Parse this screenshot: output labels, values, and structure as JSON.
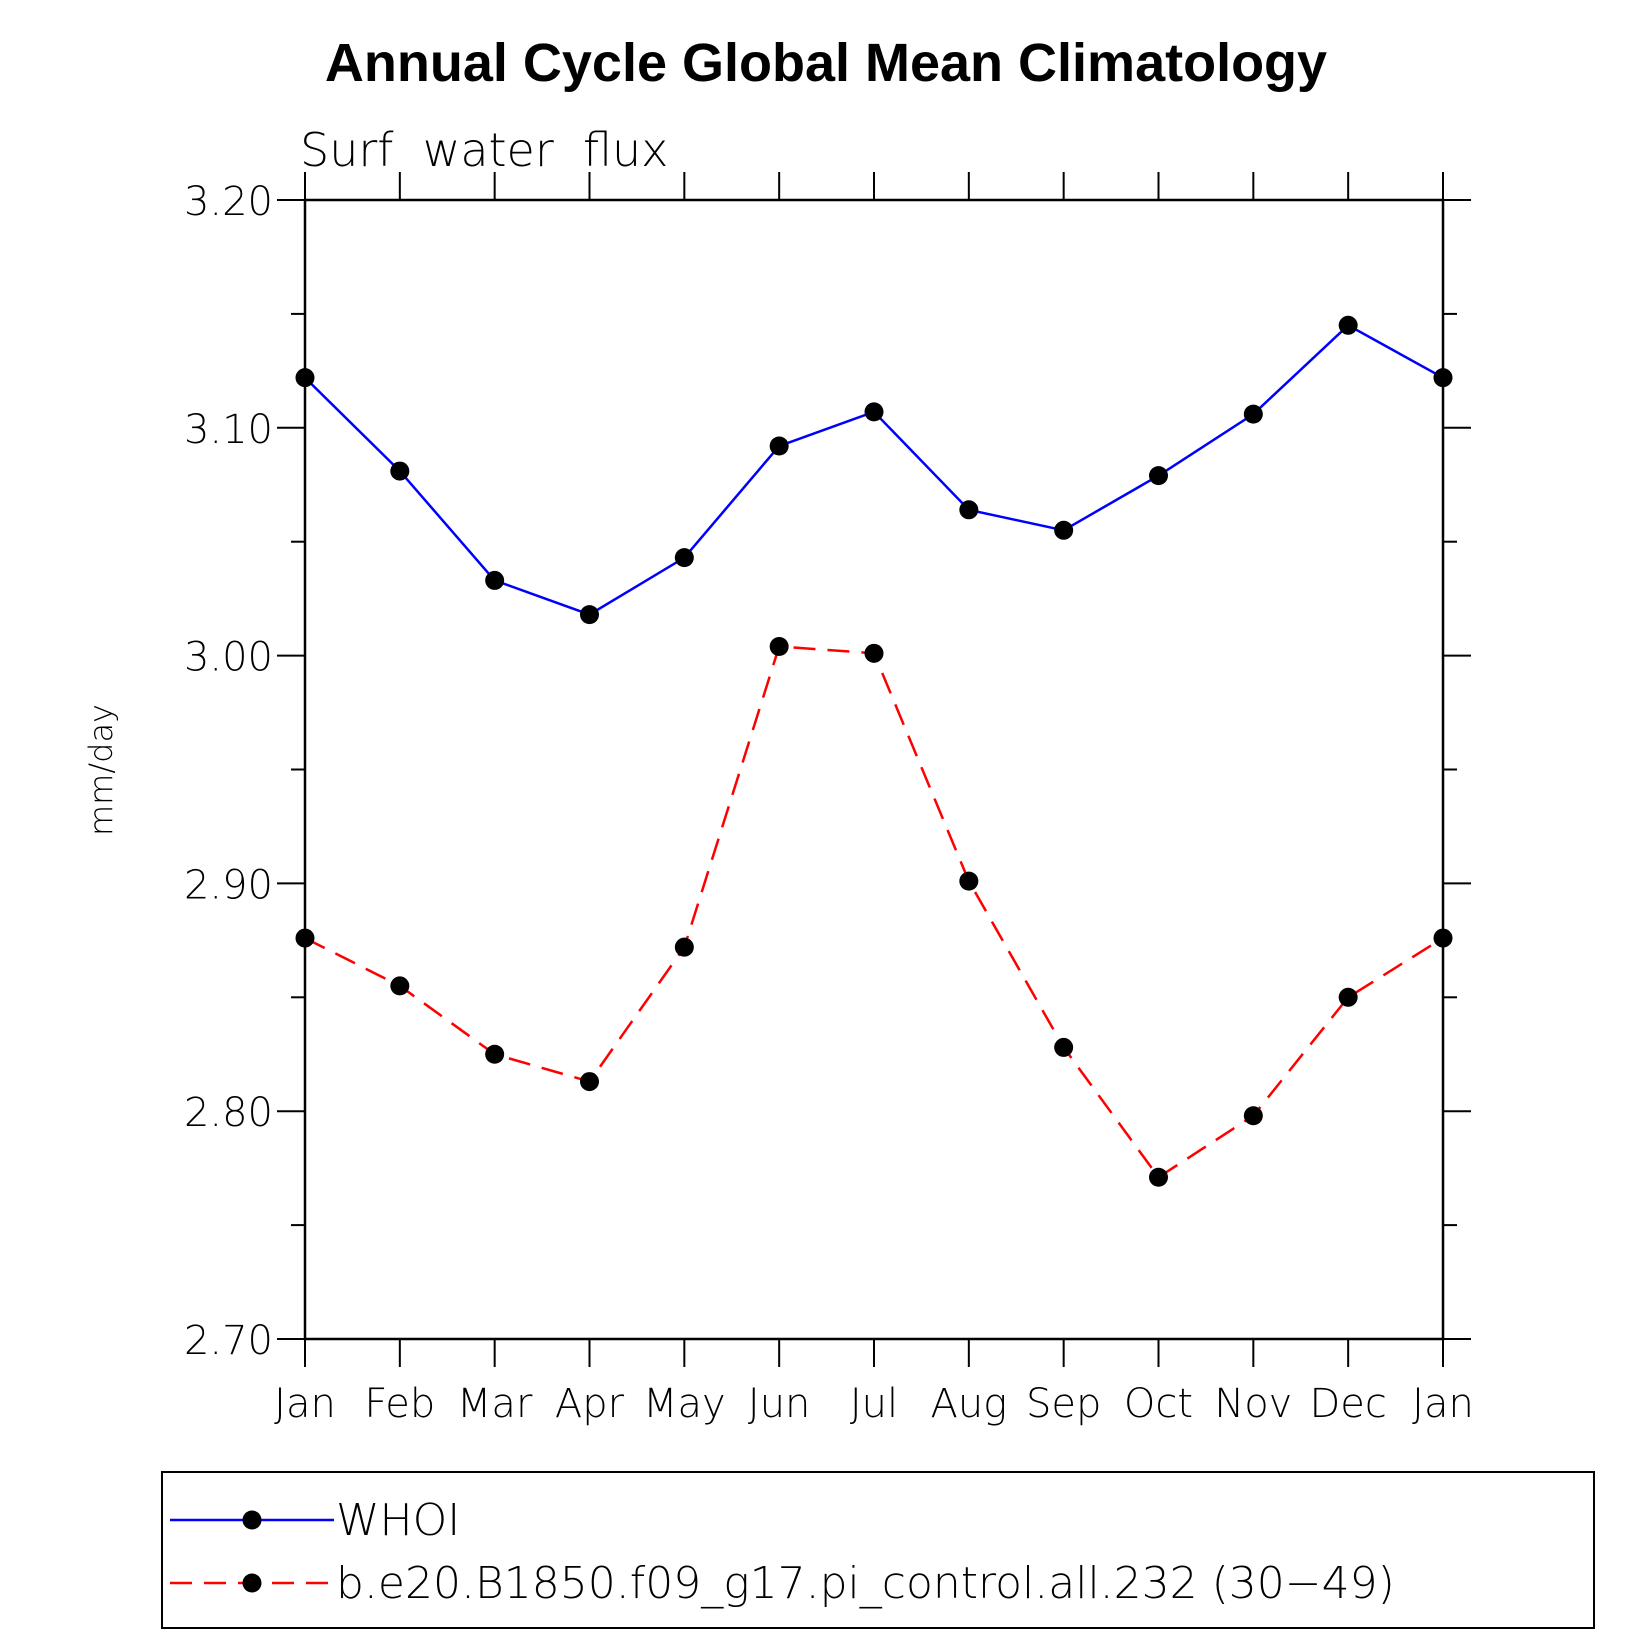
{
  "chart_data": {
    "type": "line",
    "title": "Annual Cycle Global Mean Climatology",
    "subtitle": "Surf  water  flux",
    "ylabel": "mm/day",
    "xlabel": "",
    "categories": [
      "Jan",
      "Feb",
      "Mar",
      "Apr",
      "May",
      "Jun",
      "Jul",
      "Aug",
      "Sep",
      "Oct",
      "Nov",
      "Dec",
      "Jan"
    ],
    "ylim": [
      2.7,
      3.2
    ],
    "yticks": [
      "2.70",
      "2.80",
      "2.90",
      "3.00",
      "3.10",
      "3.20"
    ],
    "grid": false,
    "legend_position": "bottom",
    "series": [
      {
        "name": "WHOI",
        "color": "#0000ff",
        "dash": "solid",
        "marker": "filled-circle",
        "values": [
          3.122,
          3.081,
          3.033,
          3.018,
          3.043,
          3.092,
          3.107,
          3.064,
          3.055,
          3.079,
          3.106,
          3.145,
          3.122
        ]
      },
      {
        "name": "b.e20.B1850.f09_g17.pi_control.all.232 (30−49)",
        "color": "#ff0000",
        "dash": "dashed",
        "marker": "filled-circle",
        "values": [
          2.876,
          2.855,
          2.825,
          2.813,
          2.872,
          3.004,
          3.001,
          2.901,
          2.828,
          2.771,
          2.798,
          2.85,
          2.876
        ]
      }
    ]
  }
}
